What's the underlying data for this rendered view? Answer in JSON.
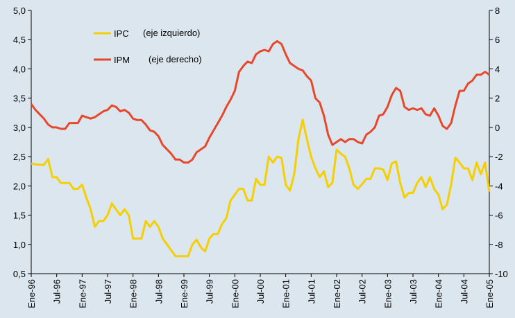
{
  "chart_data": {
    "type": "line",
    "categories": [
      "Ene-96",
      null,
      null,
      null,
      null,
      null,
      "Jul-96",
      null,
      null,
      null,
      null,
      null,
      "Ene-97",
      null,
      null,
      null,
      null,
      null,
      "Jul-97",
      null,
      null,
      null,
      null,
      null,
      "Ene-98",
      null,
      null,
      null,
      null,
      null,
      "Jul-98",
      null,
      null,
      null,
      null,
      null,
      "Ene-99",
      null,
      null,
      null,
      null,
      null,
      "Jul-99",
      null,
      null,
      null,
      null,
      null,
      "Ene-00",
      null,
      null,
      null,
      null,
      null,
      "Jul-00",
      null,
      null,
      null,
      null,
      null,
      "Ene-01",
      null,
      null,
      null,
      null,
      null,
      "Jul-01",
      null,
      null,
      null,
      null,
      null,
      "Ene-02",
      null,
      null,
      null,
      null,
      null,
      "Jul-02",
      null,
      null,
      null,
      null,
      null,
      "Ene-03",
      null,
      null,
      null,
      null,
      null,
      "Jul-03",
      null,
      null,
      null,
      null,
      null,
      "Ene-04",
      null,
      null,
      null,
      null,
      null,
      "Jul-04",
      null,
      null,
      null,
      null,
      null,
      "Ene-05"
    ],
    "series": [
      {
        "name": "IPC",
        "color": "#f5cf00",
        "axis": "y",
        "values": [
          2.38,
          2.37,
          2.36,
          2.36,
          2.46,
          2.15,
          2.15,
          2.05,
          2.05,
          2.05,
          1.95,
          1.95,
          2.02,
          1.8,
          1.6,
          1.3,
          1.4,
          1.4,
          1.5,
          1.7,
          1.6,
          1.5,
          1.6,
          1.5,
          1.1,
          1.1,
          1.1,
          1.4,
          1.3,
          1.4,
          1.3,
          1.1,
          1.0,
          0.9,
          0.8,
          0.8,
          0.8,
          0.8,
          1.0,
          1.08,
          0.95,
          0.88,
          1.1,
          1.18,
          1.18,
          1.35,
          1.45,
          1.75,
          1.85,
          1.95,
          1.95,
          1.75,
          1.75,
          2.12,
          2.02,
          2.02,
          2.5,
          2.4,
          2.5,
          2.48,
          2.02,
          1.92,
          2.2,
          2.8,
          3.13,
          2.8,
          2.5,
          2.3,
          2.15,
          2.25,
          1.98,
          2.05,
          2.62,
          2.55,
          2.5,
          2.3,
          2.02,
          1.95,
          2.03,
          2.12,
          2.12,
          2.3,
          2.3,
          2.28,
          2.1,
          2.38,
          2.42,
          2.05,
          1.8,
          1.88,
          1.88,
          2.05,
          2.15,
          1.98,
          2.15,
          1.95,
          1.85,
          1.6,
          1.68,
          2.02,
          2.48,
          2.4,
          2.3,
          2.3,
          2.1,
          2.4,
          2.2,
          2.4,
          1.9
        ]
      },
      {
        "name": "IPM",
        "color": "#e8472b",
        "axis": "y2",
        "values": [
          1.6,
          1.2,
          0.9,
          0.6,
          0.2,
          0,
          0,
          -0.1,
          -0.1,
          0.3,
          0.3,
          0.3,
          0.8,
          0.7,
          0.6,
          0.7,
          0.9,
          1.1,
          1.2,
          1.5,
          1.4,
          1.1,
          1.2,
          1.0,
          0.6,
          0.5,
          0.5,
          0.2,
          -0.2,
          -0.3,
          -0.6,
          -1.2,
          -1.5,
          -1.8,
          -2.2,
          -2.2,
          -2.4,
          -2.4,
          -2.2,
          -1.7,
          -1.5,
          -1.3,
          -0.7,
          -0.2,
          0.3,
          0.8,
          1.4,
          1.9,
          2.5,
          3.8,
          4.2,
          4.5,
          4.4,
          5.0,
          5.2,
          5.3,
          5.2,
          5.7,
          5.9,
          5.7,
          5.0,
          4.4,
          4.2,
          4.0,
          3.9,
          3.5,
          3.2,
          2.0,
          1.7,
          0.8,
          -0.5,
          -1.2,
          -1.0,
          -0.8,
          -1.0,
          -0.8,
          -0.8,
          -1.0,
          -1.1,
          -0.5,
          -0.3,
          0,
          0.8,
          0.9,
          1.4,
          2.2,
          2.7,
          2.5,
          1.4,
          1.2,
          1.3,
          1.2,
          1.3,
          0.9,
          0.8,
          1.3,
          0.8,
          0.1,
          -0.1,
          0.3,
          1.5,
          2.5,
          2.5,
          3.0,
          3.2,
          3.6,
          3.6,
          3.8,
          3.6
        ]
      }
    ],
    "annotations": [
      "(eje izquierdo)",
      "(eje derecho)"
    ],
    "ylim": [
      0.5,
      5.0
    ],
    "yticks": [
      {
        "value": 0.5,
        "label": "0,5"
      },
      {
        "value": 1.0,
        "label": "1,0"
      },
      {
        "value": 1.5,
        "label": "1,5"
      },
      {
        "value": 2.0,
        "label": "2,0"
      },
      {
        "value": 2.5,
        "label": "2,5"
      },
      {
        "value": 3.0,
        "label": "3,0"
      },
      {
        "value": 3.5,
        "label": "3,5"
      },
      {
        "value": 4.0,
        "label": "4,0"
      },
      {
        "value": 4.5,
        "label": "4,5"
      },
      {
        "value": 5.0,
        "label": "5,0"
      }
    ],
    "y2lim": [
      -10,
      8
    ],
    "y2ticks": [
      -10,
      -8,
      -6,
      -4,
      -2,
      0,
      2,
      4,
      6,
      8
    ],
    "grid": false
  }
}
